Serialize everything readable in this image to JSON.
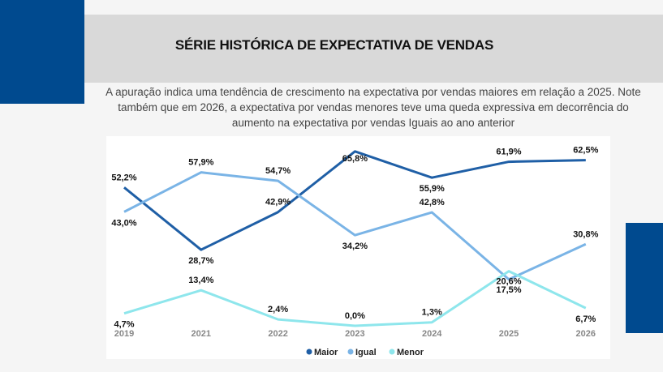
{
  "header": {
    "title": "SÉRIE HISTÓRICA DE EXPECTATIVA DE VENDAS",
    "description": "A apuração indica uma tendência de crescimento na expectativa por vendas maiores em relação a 2025. Note também que em 2026, a expectativa por vendas menores teve uma queda expressiva em decorrência do aumento na expectativa por vendas Iguais ao ano anterior"
  },
  "colors": {
    "accent_block": "#004a8f",
    "band": "#d9d9d9"
  },
  "chart_data": {
    "type": "line",
    "categories": [
      "2019",
      "2021",
      "2022",
      "2023",
      "2024",
      "2025",
      "2026"
    ],
    "legend_position": "bottom",
    "grid": false,
    "unit": "%",
    "series": [
      {
        "name": "Maior",
        "color": "#1f5fa6",
        "values": [
          52.2,
          28.7,
          42.9,
          65.8,
          55.9,
          61.9,
          62.5
        ],
        "labels": [
          "52,2%",
          "28,7%",
          "42,9%",
          "65,8%",
          "55,9%",
          "61,9%",
          "62,5%"
        ]
      },
      {
        "name": "Igual",
        "color": "#7ab4e6",
        "values": [
          43.0,
          57.9,
          54.7,
          34.2,
          42.8,
          17.5,
          30.8
        ],
        "labels": [
          "43,0%",
          "57,9%",
          "54,7%",
          "34,2%",
          "42,8%",
          "17,5%",
          "30,8%"
        ]
      },
      {
        "name": "Menor",
        "color": "#8ee6ec",
        "values": [
          4.7,
          13.4,
          2.4,
          0.0,
          1.3,
          20.6,
          6.7
        ],
        "labels": [
          "4,7%",
          "13,4%",
          "2,4%",
          "0,0%",
          "1,3%",
          "20,6%",
          "6,7%"
        ]
      }
    ]
  }
}
